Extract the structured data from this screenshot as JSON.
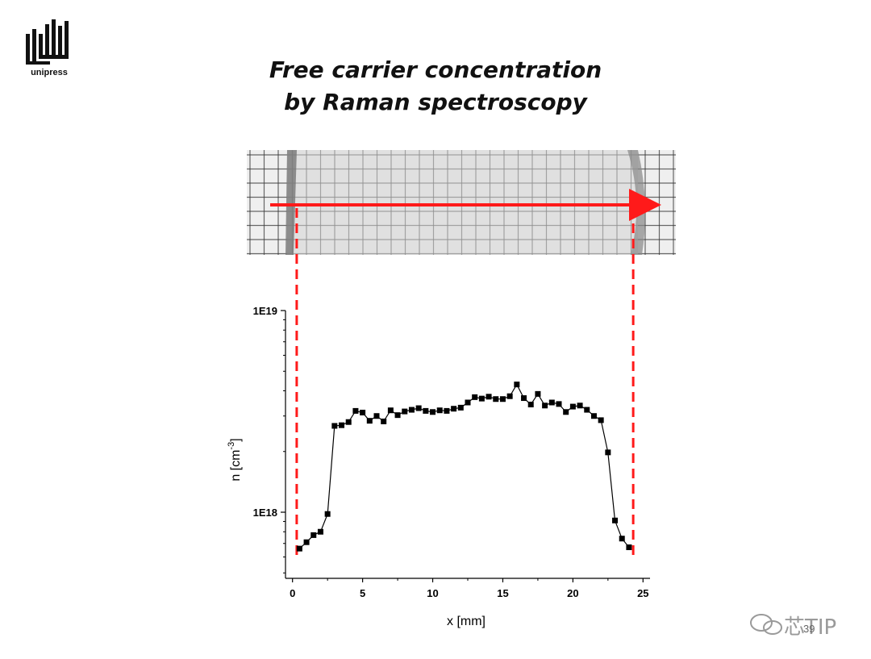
{
  "logo": {
    "text": "unipress"
  },
  "slide": {
    "title_line1": "Free carrier concentration",
    "title_line2": "by Raman spectroscopy",
    "page_number": "39"
  },
  "watermark": {
    "text": "芯TIP"
  },
  "colors": {
    "arrow": "#ff1a1a",
    "series": "#000000",
    "grid_photo": "#3a3a3a"
  },
  "chart_data": {
    "type": "scatter",
    "xlabel": "x [mm]",
    "ylabel": "n [cm",
    "ylabel_sup": "-3",
    "xlim": [
      -0.5,
      25.5
    ],
    "ylim": [
      4.7e+17,
      1e+19
    ],
    "yscale": "log",
    "x_ticks": [
      0,
      5,
      10,
      15,
      20,
      25
    ],
    "x_tick_labels": [
      "0",
      "5",
      "10",
      "15",
      "20",
      "25"
    ],
    "y_ticks": [
      1e+18,
      1e+19
    ],
    "y_tick_labels": [
      "1E18",
      "1E19"
    ],
    "grid": false,
    "marker": "square",
    "line": true,
    "guide_lines_x": [
      0.3,
      24.3
    ],
    "series": [
      {
        "x": [
          0.5,
          1.0,
          1.5,
          2.0,
          2.5,
          3.0,
          3.5,
          4.0,
          4.5,
          5.0,
          5.5,
          6.0,
          6.5,
          7.0,
          7.5,
          8.0,
          8.5,
          9.0,
          9.5,
          10.0,
          10.5,
          11.0,
          11.5,
          12.0,
          12.5,
          13.0,
          13.5,
          14.0,
          14.5,
          15.0,
          15.5,
          16.0,
          16.5,
          17.0,
          17.5,
          18.0,
          18.5,
          19.0,
          19.5,
          20.0,
          20.5,
          21.0,
          21.5,
          22.0,
          22.5,
          23.0,
          23.5,
          24.0
        ],
        "y": [
          6.6e+17,
          7.1e+17,
          7.7e+17,
          8e+17,
          9.8e+17,
          2.68e+18,
          2.7e+18,
          2.8e+18,
          3.18e+18,
          3.12e+18,
          2.84e+18,
          3e+18,
          2.82e+18,
          3.2e+18,
          3.03e+18,
          3.16e+18,
          3.22e+18,
          3.28e+18,
          3.18e+18,
          3.14e+18,
          3.2e+18,
          3.18e+18,
          3.26e+18,
          3.3e+18,
          3.5e+18,
          3.72e+18,
          3.66e+18,
          3.74e+18,
          3.64e+18,
          3.64e+18,
          3.76e+18,
          4.3e+18,
          3.68e+18,
          3.42e+18,
          3.86e+18,
          3.38e+18,
          3.5e+18,
          3.44e+18,
          3.14e+18,
          3.34e+18,
          3.38e+18,
          3.22e+18,
          3e+18,
          2.86e+18,
          1.98e+18,
          9.1e+17,
          7.4e+17,
          6.7e+17
        ]
      }
    ]
  }
}
